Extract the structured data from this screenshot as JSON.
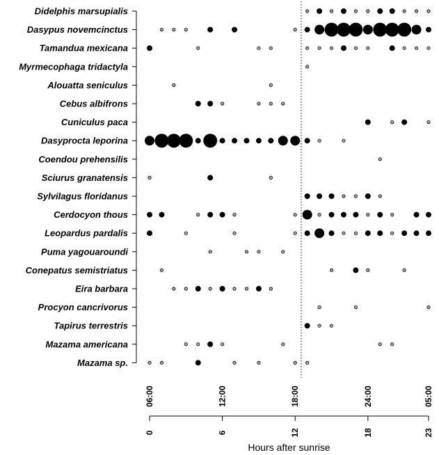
{
  "chart_data": {
    "type": "scatter",
    "xlabel": "Hours after sunrise",
    "xlim": [
      0,
      23
    ],
    "x_ticks_bottom": [
      0,
      6,
      12,
      18,
      23
    ],
    "x_ticks_top": [
      "06:00",
      "12:00",
      "18:00",
      "24:00",
      "05:00"
    ],
    "reference_line_x": 12.5,
    "species": [
      "Didelphis marsupialis",
      "Dasypus novemcinctus",
      "Tamandua mexicana",
      "Myrmecophaga tridactyla",
      "Alouatta seniculus",
      "Cebus albifrons",
      "Cuniculus paca",
      "Dasyprocta leporina",
      "Coendou prehensilis",
      "Sciurus granatensis",
      "Sylvilagus floridanus",
      "Cerdocyon thous",
      "Leopardus pardalis",
      "Puma yagouaroundi",
      "Conepatus semistriatus",
      "Eira barbara",
      "Procyon cancrivorus",
      "Tapirus terrestris",
      "Mazama americana",
      "Mazama sp."
    ],
    "points": [
      [
        [
          13,
          1
        ],
        [
          14,
          2
        ],
        [
          15,
          1
        ],
        [
          16,
          2
        ],
        [
          17,
          1
        ],
        [
          18,
          1
        ],
        [
          19,
          2
        ],
        [
          20,
          2
        ],
        [
          21,
          1
        ],
        [
          22,
          1
        ],
        [
          23,
          1
        ]
      ],
      [
        [
          1,
          1
        ],
        [
          2,
          1
        ],
        [
          3,
          1
        ],
        [
          5,
          2
        ],
        [
          7,
          2
        ],
        [
          12,
          1
        ],
        [
          13,
          2
        ],
        [
          14,
          3
        ],
        [
          15,
          4
        ],
        [
          16,
          4
        ],
        [
          17,
          4
        ],
        [
          18,
          3
        ],
        [
          19,
          4
        ],
        [
          20,
          4
        ],
        [
          21,
          4
        ],
        [
          22,
          3
        ],
        [
          23,
          2
        ]
      ],
      [
        [
          0,
          2
        ],
        [
          4,
          1
        ],
        [
          9,
          1
        ],
        [
          10,
          1
        ],
        [
          13,
          1
        ],
        [
          14,
          1
        ],
        [
          15,
          1
        ],
        [
          16,
          2
        ],
        [
          17,
          1
        ],
        [
          18,
          1
        ],
        [
          20,
          2
        ],
        [
          21,
          1
        ],
        [
          22,
          1
        ],
        [
          23,
          1
        ]
      ],
      [
        [
          13,
          1
        ]
      ],
      [
        [
          2,
          1
        ],
        [
          10,
          1
        ]
      ],
      [
        [
          4,
          2
        ],
        [
          5,
          2
        ],
        [
          6,
          1
        ],
        [
          9,
          1
        ],
        [
          10,
          1
        ],
        [
          11,
          1
        ]
      ],
      [
        [
          18,
          2
        ],
        [
          20,
          1
        ],
        [
          21,
          2
        ],
        [
          23,
          1
        ]
      ],
      [
        [
          0,
          3
        ],
        [
          1,
          4
        ],
        [
          2,
          4
        ],
        [
          3,
          4
        ],
        [
          4,
          2
        ],
        [
          5,
          4
        ],
        [
          6,
          2
        ],
        [
          7,
          2
        ],
        [
          8,
          2
        ],
        [
          9,
          2
        ],
        [
          10,
          2
        ],
        [
          11,
          3
        ],
        [
          12,
          3
        ],
        [
          13,
          2
        ],
        [
          14,
          1
        ],
        [
          16,
          1
        ]
      ],
      [
        [
          19,
          1
        ]
      ],
      [
        [
          0,
          1
        ],
        [
          5,
          2
        ],
        [
          10,
          1
        ]
      ],
      [
        [
          13,
          2
        ],
        [
          14,
          2
        ],
        [
          15,
          2
        ],
        [
          16,
          1
        ],
        [
          17,
          1
        ],
        [
          18,
          2
        ],
        [
          19,
          1
        ]
      ],
      [
        [
          0,
          2
        ],
        [
          1,
          2
        ],
        [
          4,
          1
        ],
        [
          5,
          2
        ],
        [
          6,
          2
        ],
        [
          7,
          1
        ],
        [
          12,
          1
        ],
        [
          13,
          3
        ],
        [
          14,
          1
        ],
        [
          15,
          2
        ],
        [
          16,
          2
        ],
        [
          17,
          2
        ],
        [
          18,
          1
        ],
        [
          19,
          2
        ],
        [
          20,
          1
        ],
        [
          22,
          2
        ],
        [
          23,
          2
        ]
      ],
      [
        [
          0,
          2
        ],
        [
          3,
          1
        ],
        [
          7,
          1
        ],
        [
          12,
          1
        ],
        [
          13,
          2
        ],
        [
          14,
          3
        ],
        [
          15,
          2
        ],
        [
          16,
          1
        ],
        [
          17,
          1
        ],
        [
          18,
          2
        ],
        [
          19,
          2
        ],
        [
          20,
          1
        ],
        [
          21,
          2
        ],
        [
          22,
          2
        ],
        [
          23,
          2
        ]
      ],
      [
        [
          5,
          1
        ],
        [
          8,
          1
        ],
        [
          9,
          1
        ],
        [
          11,
          1
        ]
      ],
      [
        [
          1,
          1
        ],
        [
          15,
          1
        ],
        [
          17,
          2
        ],
        [
          18,
          1
        ],
        [
          21,
          1
        ]
      ],
      [
        [
          2,
          1
        ],
        [
          3,
          1
        ],
        [
          4,
          2
        ],
        [
          5,
          1
        ],
        [
          6,
          2
        ],
        [
          7,
          1
        ],
        [
          8,
          1
        ],
        [
          9,
          2
        ],
        [
          10,
          1
        ]
      ],
      [
        [
          14,
          1
        ],
        [
          17,
          1
        ],
        [
          23,
          1
        ]
      ],
      [
        [
          13,
          2
        ],
        [
          14,
          1
        ],
        [
          15,
          1
        ]
      ],
      [
        [
          3,
          1
        ],
        [
          4,
          1
        ],
        [
          5,
          2
        ],
        [
          6,
          1
        ],
        [
          11,
          1
        ],
        [
          19,
          1
        ],
        [
          20,
          1
        ]
      ],
      [
        [
          0,
          1
        ],
        [
          1,
          1
        ],
        [
          4,
          2
        ],
        [
          7,
          1
        ],
        [
          9,
          1
        ],
        [
          12,
          1
        ],
        [
          13,
          1
        ]
      ]
    ]
  }
}
